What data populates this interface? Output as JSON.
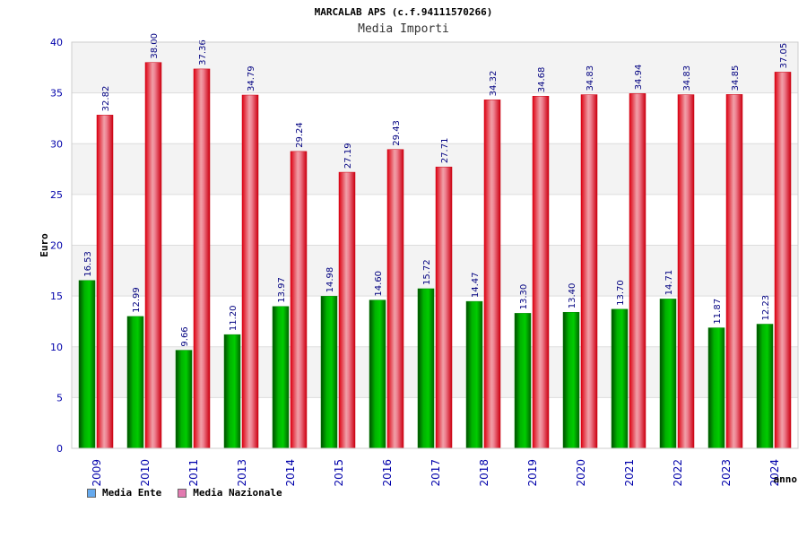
{
  "chart_data": {
    "type": "bar",
    "title": "MARCALAB APS (c.f.94111570266)",
    "subtitle": "Media Importi",
    "xlabel": "anno",
    "ylabel": "Euro",
    "ylim": [
      0,
      40
    ],
    "yticks": [
      0,
      5,
      10,
      15,
      20,
      25,
      30,
      35,
      40
    ],
    "categories": [
      "2009",
      "2010",
      "2011",
      "2013",
      "2014",
      "2015",
      "2016",
      "2017",
      "2018",
      "2019",
      "2020",
      "2021",
      "2022",
      "2023",
      "2024"
    ],
    "series": [
      {
        "name": "Media Ente",
        "color": "#00aa00",
        "legend_color": "#66aaee",
        "labels": [
          "16.53",
          "12.99",
          "9.66",
          "11.20",
          "13.97",
          "14.98",
          "14.60",
          "15.72",
          "14.47",
          "13.30",
          "13.40",
          "13.70",
          "14.71",
          "11.87",
          "12.23"
        ],
        "values": [
          16.53,
          12.99,
          9.66,
          11.2,
          13.97,
          14.98,
          14.6,
          15.72,
          14.47,
          13.3,
          13.4,
          13.7,
          14.71,
          11.87,
          12.23
        ]
      },
      {
        "name": "Media Nazionale",
        "color": "#ee2233",
        "legend_color": "#e27ab0",
        "labels": [
          "32.82",
          "38.00",
          "37.36",
          "34.79",
          "29.24",
          "27.19",
          "29.43",
          "27.71",
          "34.32",
          "34.68",
          "34.83",
          "34.94",
          "34.83",
          "34.85",
          "37.05"
        ],
        "values": [
          32.82,
          38.0,
          37.36,
          34.79,
          29.24,
          27.19,
          29.43,
          27.71,
          34.32,
          34.68,
          34.83,
          34.94,
          34.83,
          34.85,
          37.05
        ]
      }
    ]
  }
}
